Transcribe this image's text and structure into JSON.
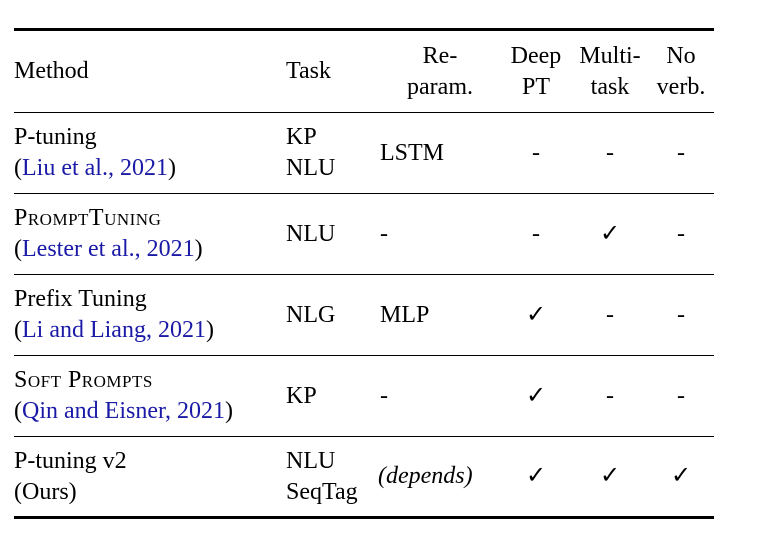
{
  "table": {
    "headers": {
      "method": "Method",
      "task": "Task",
      "reparam_line1": "Re-",
      "reparam_line2": "param.",
      "deep_line1": "Deep",
      "deep_line2": "PT",
      "multi_line1": "Multi-",
      "multi_line2": "task",
      "noverb_line1": "No",
      "noverb_line2": "verb."
    },
    "rows": [
      {
        "method": "P-tuning",
        "cite_open": "(",
        "cite": "Liu et al., 2021",
        "cite_close": ")",
        "task_line1": "KP",
        "task_line2": "NLU",
        "reparam": "LSTM",
        "deep": "-",
        "multi": "-",
        "noverb": "-"
      },
      {
        "method": "PromptTuning",
        "cite_open": "(",
        "cite": "Lester et al., 2021",
        "cite_close": ")",
        "task_line1": "NLU",
        "task_line2": "",
        "reparam": "-",
        "deep": "-",
        "multi": "✓",
        "noverb": "-"
      },
      {
        "method": "Prefix Tuning",
        "cite_open": "(",
        "cite": "Li and Liang, 2021",
        "cite_close": ")",
        "task_line1": "NLG",
        "task_line2": "",
        "reparam": "MLP",
        "deep": "✓",
        "multi": "-",
        "noverb": "-"
      },
      {
        "method": "Soft Prompts",
        "cite_open": "(",
        "cite": "Qin and Eisner, 2021",
        "cite_close": ")",
        "task_line1": "KP",
        "task_line2": "",
        "reparam": "-",
        "deep": "✓",
        "multi": "-",
        "noverb": "-"
      },
      {
        "method": "P-tuning v2",
        "method_line2": "(Ours)",
        "task_line1": "NLU",
        "task_line2": "SeqTag",
        "reparam": "(depends)",
        "deep": "✓",
        "multi": "✓",
        "noverb": "✓"
      }
    ]
  }
}
